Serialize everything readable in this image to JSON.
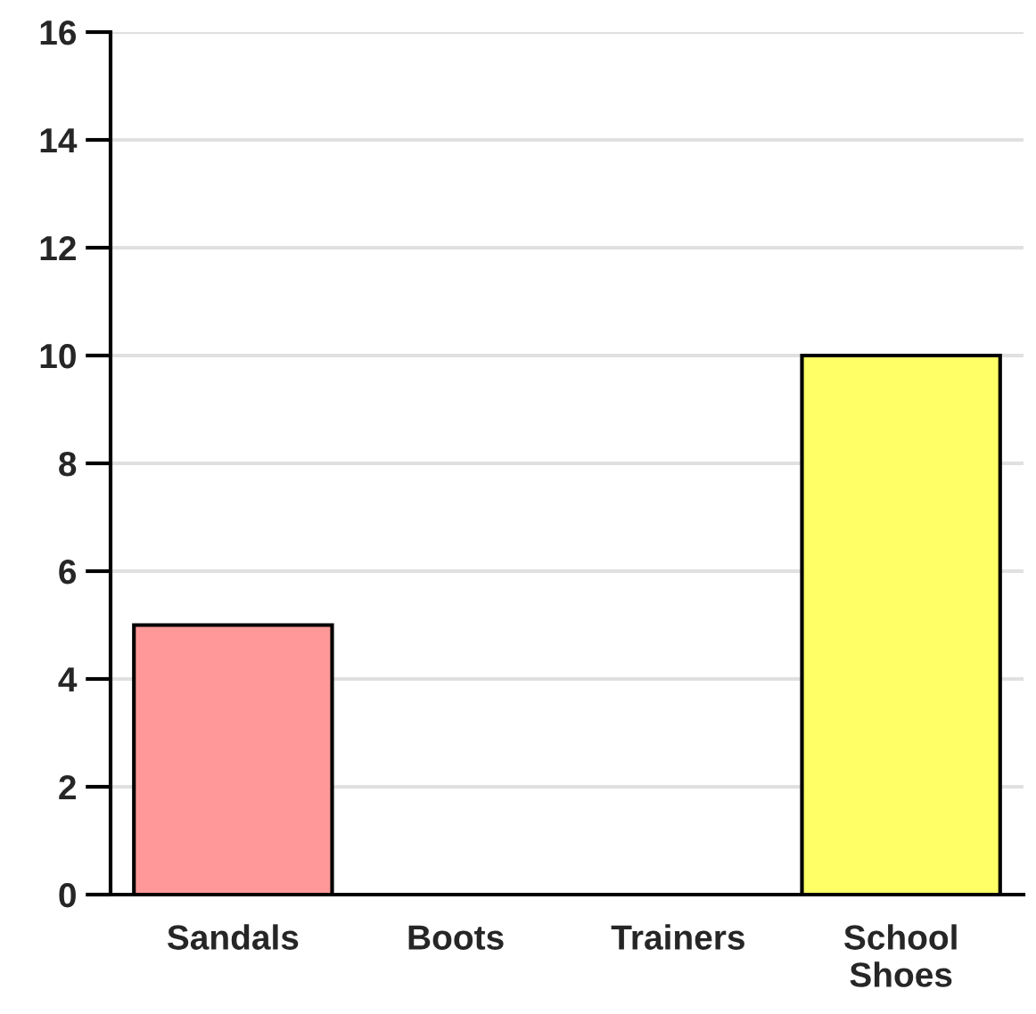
{
  "chart_data": {
    "type": "bar",
    "categories": [
      "Sandals",
      "Boots",
      "Trainers",
      "School Shoes"
    ],
    "values": [
      5,
      0,
      0,
      10
    ],
    "colors": [
      "#ff9999",
      null,
      null,
      "#ffff66"
    ],
    "ylim": [
      0,
      16
    ],
    "yticks": [
      0,
      2,
      4,
      6,
      8,
      10,
      12,
      14,
      16
    ],
    "grid": "y",
    "legend": false
  }
}
